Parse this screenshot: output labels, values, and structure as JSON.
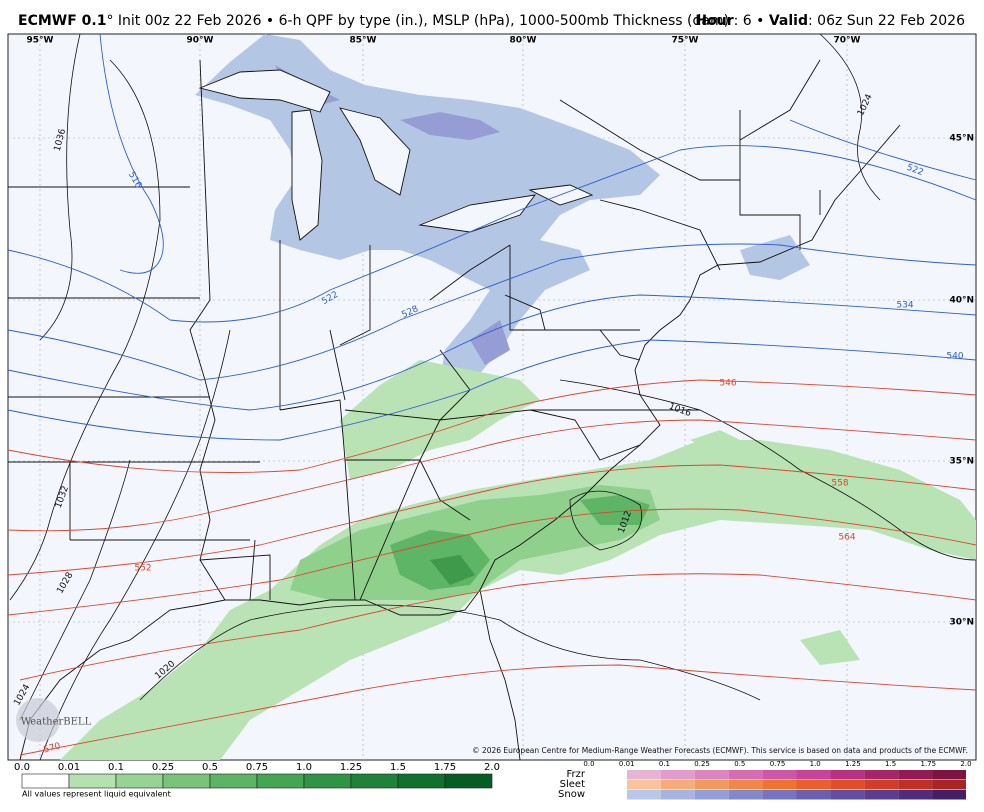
{
  "header": {
    "model": "ECMWF 0.1",
    "title": "° Init 00z 22 Feb 2026 • 6-h QPF by type (in.), MSLP (hPa), 1000-500mb Thickness (dam)",
    "hour_label": "Hour",
    "hour_value": ": 6 • ",
    "valid_label": "Valid",
    "valid_value": ": 06z Sun 22 Feb 2026"
  },
  "map": {
    "longitude_labels": [
      "95°W",
      "90°W",
      "85°W",
      "80°W",
      "75°W",
      "70°W"
    ],
    "latitude_labels": [
      "45°N",
      "40°N",
      "35°N",
      "30°N"
    ],
    "isobar_labels": [
      "1036",
      "1032",
      "1028",
      "1024",
      "1020",
      "1016",
      "1012",
      "1024"
    ],
    "thickness_labels": [
      "516",
      "522",
      "528",
      "534",
      "540",
      "546",
      "552",
      "558",
      "564",
      "570",
      "522"
    ],
    "copyright": "© 2026 European Centre for Medium-Range Weather Forecasts (ECMWF). This service is based on data and products of the ECMWF.",
    "logo": "WeatherBELL"
  },
  "legend": {
    "rain_ticks": [
      "0.0",
      "0.01",
      "0.1",
      "0.25",
      "0.5",
      "0.75",
      "1.0",
      "1.25",
      "1.5",
      "1.75",
      "2.0"
    ],
    "note": "All values represent liquid equivalent",
    "ptype_labels": [
      "Frzr",
      "Sleet",
      "Snow"
    ],
    "ptype_ticks": [
      "0.0",
      "0.01",
      "0.1",
      "0.25",
      "0.5",
      "0.75",
      "1.0",
      "1.25",
      "1.5",
      "1.75",
      "2.0"
    ]
  }
}
